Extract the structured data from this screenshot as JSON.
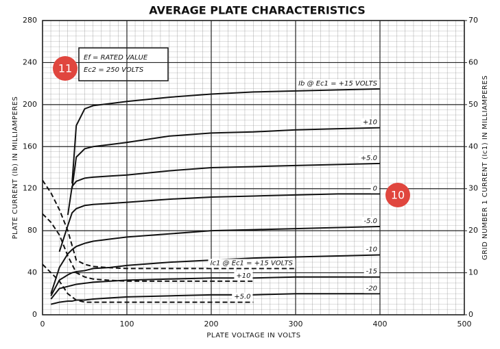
{
  "chart_data": {
    "type": "line",
    "title": "AVERAGE PLATE CHARACTERISTICS",
    "x_label": "PLATE VOLTAGE IN VOLTS",
    "y_label": "PLATE CURRENT (Ib) IN MILLIAMPERES",
    "y2_label": "GRID NUMBER 1 CURRENT (Ic1) IN MILLIAMPERES",
    "annotations": [
      "Ef = RATED VALUE",
      "Ec2 = 250 VOLTS"
    ],
    "markers": [
      "11",
      "10"
    ],
    "xlim": [
      0,
      500
    ],
    "xticks": [
      0,
      100,
      200,
      300,
      400,
      500
    ],
    "ylim": [
      0,
      280
    ],
    "yticks": [
      0,
      40,
      80,
      120,
      160,
      200,
      240,
      280
    ],
    "y2lim": [
      0,
      70
    ],
    "y2ticks": [
      0,
      10,
      20,
      30,
      40,
      50,
      60,
      70
    ],
    "grid": true,
    "x": [
      5,
      10,
      20,
      30,
      35,
      40,
      50,
      60,
      80,
      100,
      150,
      200,
      250,
      300,
      350,
      400
    ],
    "series": [
      {
        "name": "Ib @ Ec1 = +15 VOLTS",
        "color": "#111",
        "values": [
          null,
          null,
          null,
          null,
          125,
          180,
          196,
          199,
          201,
          203,
          207,
          210,
          212,
          213,
          214,
          215
        ]
      },
      {
        "name": "+10",
        "color": "#111",
        "values": [
          null,
          null,
          null,
          null,
          120,
          150,
          158,
          160,
          162,
          164,
          170,
          173,
          174,
          176,
          177,
          178
        ]
      },
      {
        "name": "+5.0",
        "color": "#111",
        "values": [
          null,
          null,
          null,
          95,
          122,
          127,
          130,
          131,
          132,
          133,
          137,
          140,
          141,
          142,
          143,
          144
        ]
      },
      {
        "name": "0",
        "color": "#111",
        "values": [
          null,
          null,
          60,
          85,
          97,
          101,
          104,
          105,
          106,
          107,
          110,
          112,
          113,
          114,
          115,
          115
        ]
      },
      {
        "name": "-5.0",
        "color": "#111",
        "values": [
          null,
          20,
          45,
          58,
          62,
          65,
          68,
          70,
          72,
          74,
          77,
          80,
          81,
          82,
          83,
          84
        ]
      },
      {
        "name": "-10",
        "color": "#111",
        "values": [
          null,
          18,
          33,
          38,
          40,
          41,
          42,
          44,
          45,
          47,
          50,
          52,
          54,
          55,
          56,
          57
        ]
      },
      {
        "name": "-15",
        "color": "#111",
        "values": [
          null,
          15,
          25,
          27,
          28,
          29,
          30,
          31,
          32,
          33,
          34,
          35,
          35,
          36,
          36,
          36
        ]
      },
      {
        "name": "-20",
        "color": "#111",
        "values": [
          null,
          10,
          12,
          13,
          13,
          14,
          14,
          15,
          16,
          17,
          18,
          19,
          19,
          20,
          20,
          20
        ]
      },
      {
        "name": "Ic1 @ Ec1 = +15 VOLTS",
        "color": "#111",
        "axis": "y2",
        "dashed": true,
        "x": [
          0,
          10,
          20,
          30,
          40,
          50,
          60,
          80,
          100,
          150,
          200,
          250,
          300
        ],
        "values": [
          32,
          29,
          25,
          20,
          13,
          12,
          11.5,
          11.2,
          11,
          11,
          11,
          11,
          11
        ]
      },
      {
        "name": "+10",
        "color": "#111",
        "axis": "y2",
        "dashed": true,
        "x": [
          0,
          10,
          20,
          30,
          40,
          50,
          60,
          80,
          100,
          150,
          200,
          250
        ],
        "values": [
          24,
          22,
          19,
          14,
          10,
          9,
          8.5,
          8.2,
          8,
          8,
          8,
          8
        ]
      },
      {
        "name": "+5.0",
        "color": "#111",
        "axis": "y2",
        "dashed": true,
        "x": [
          0,
          10,
          20,
          30,
          40,
          50,
          60,
          80,
          100,
          150,
          200,
          250
        ],
        "values": [
          12,
          10,
          8,
          5,
          3.5,
          3,
          3,
          3,
          3,
          3,
          3,
          3
        ]
      }
    ]
  }
}
